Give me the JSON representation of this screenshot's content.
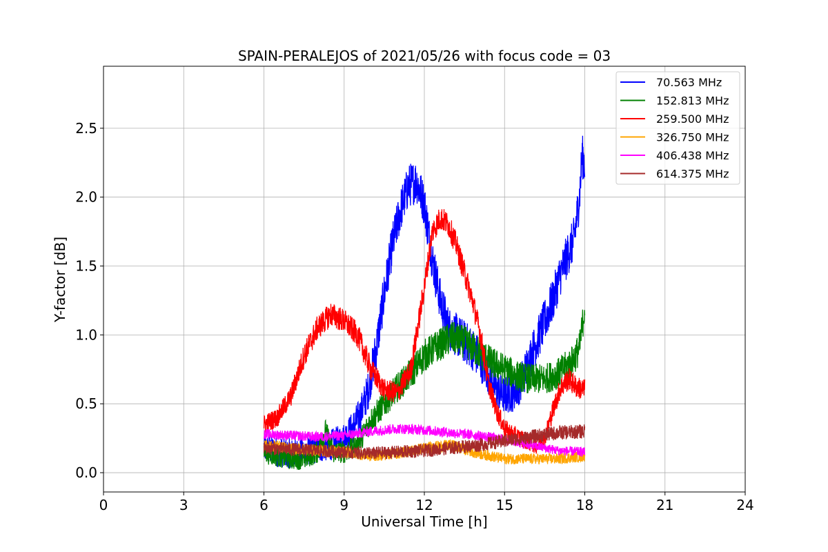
{
  "chart_data": {
    "type": "line",
    "title": "SPAIN-PERALEJOS of 2021/05/26 with focus code = 03",
    "xlabel": "Universal Time [h]",
    "ylabel": "Y-factor [dB]",
    "xlim": [
      0,
      24
    ],
    "ylim": [
      -0.14,
      2.95
    ],
    "xticks": [
      0,
      3,
      6,
      9,
      12,
      15,
      18,
      21,
      24
    ],
    "xtick_labels": [
      "0",
      "3",
      "6",
      "9",
      "12",
      "15",
      "18",
      "21",
      "24"
    ],
    "yticks": [
      0.0,
      0.5,
      1.0,
      1.5,
      2.0,
      2.5
    ],
    "ytick_labels": [
      "0.0",
      "0.5",
      "1.0",
      "1.5",
      "2.0",
      "2.5"
    ],
    "grid": true,
    "legend_position": "top-right",
    "series": [
      {
        "name": " 70.563 MHz",
        "color": "#0000ff",
        "noise": 0.16,
        "x": [
          6.0,
          6.5,
          7.0,
          7.5,
          8.0,
          8.5,
          9.0,
          9.3,
          9.6,
          9.9,
          10.2,
          10.5,
          10.8,
          11.1,
          11.4,
          11.7,
          12.0,
          12.3,
          12.6,
          12.9,
          13.2,
          13.5,
          13.8,
          14.1,
          14.4,
          14.7,
          15.0,
          15.3,
          15.6,
          15.9,
          16.2,
          16.5,
          16.8,
          17.1,
          17.4,
          17.6,
          17.8,
          17.9,
          18.0
        ],
        "y": [
          0.18,
          0.15,
          0.14,
          0.15,
          0.18,
          0.2,
          0.25,
          0.32,
          0.42,
          0.6,
          0.9,
          1.3,
          1.65,
          1.9,
          2.08,
          2.12,
          1.95,
          1.55,
          1.25,
          1.05,
          1.0,
          0.95,
          0.9,
          0.82,
          0.72,
          0.6,
          0.56,
          0.58,
          0.65,
          0.8,
          0.95,
          1.1,
          1.25,
          1.45,
          1.6,
          1.7,
          2.0,
          2.3,
          2.25
        ]
      },
      {
        "name": "152.813 MHz",
        "color": "#008000",
        "noise": 0.12,
        "x": [
          6.0,
          6.5,
          7.0,
          7.5,
          8.0,
          8.3,
          8.6,
          9.0,
          9.5,
          10.0,
          10.5,
          11.0,
          11.5,
          12.0,
          12.5,
          13.0,
          13.5,
          14.0,
          14.5,
          15.0,
          15.5,
          16.0,
          16.5,
          17.0,
          17.5,
          17.8,
          18.0
        ],
        "y": [
          0.15,
          0.12,
          0.1,
          0.1,
          0.15,
          0.3,
          0.15,
          0.15,
          0.2,
          0.38,
          0.5,
          0.62,
          0.72,
          0.85,
          0.92,
          0.98,
          0.95,
          0.88,
          0.8,
          0.75,
          0.7,
          0.68,
          0.68,
          0.72,
          0.8,
          0.9,
          1.2
        ]
      },
      {
        "name": "259.500 MHz",
        "color": "#ff0000",
        "noise": 0.09,
        "x": [
          6.0,
          6.5,
          7.0,
          7.5,
          8.0,
          8.5,
          9.0,
          9.5,
          10.0,
          10.5,
          11.0,
          11.5,
          12.0,
          12.3,
          12.6,
          12.9,
          13.2,
          13.5,
          13.8,
          14.1,
          14.4,
          14.7,
          15.0,
          15.3,
          15.6,
          15.9,
          16.2,
          16.5,
          16.8,
          17.1,
          17.4,
          17.7,
          18.0
        ],
        "y": [
          0.35,
          0.4,
          0.55,
          0.85,
          1.05,
          1.15,
          1.1,
          1.0,
          0.75,
          0.6,
          0.58,
          0.75,
          1.35,
          1.75,
          1.85,
          1.8,
          1.65,
          1.45,
          1.25,
          1.0,
          0.65,
          0.45,
          0.32,
          0.28,
          0.25,
          0.22,
          0.2,
          0.25,
          0.45,
          0.62,
          0.68,
          0.62,
          0.6
        ]
      },
      {
        "name": "326.750 MHz",
        "color": "#ffa500",
        "noise": 0.06,
        "x": [
          6.0,
          7.0,
          8.0,
          9.0,
          10.0,
          11.0,
          12.0,
          13.0,
          14.0,
          15.0,
          16.0,
          17.0,
          18.0
        ],
        "y": [
          0.2,
          0.18,
          0.16,
          0.15,
          0.12,
          0.14,
          0.18,
          0.2,
          0.14,
          0.1,
          0.1,
          0.1,
          0.12
        ]
      },
      {
        "name": "406.438 MHz",
        "color": "#ff00ff",
        "noise": 0.05,
        "x": [
          6.0,
          7.0,
          8.0,
          9.0,
          10.0,
          11.0,
          12.0,
          13.0,
          14.0,
          15.0,
          16.0,
          17.0,
          18.0
        ],
        "y": [
          0.28,
          0.27,
          0.26,
          0.27,
          0.3,
          0.32,
          0.31,
          0.29,
          0.27,
          0.24,
          0.2,
          0.16,
          0.15
        ]
      },
      {
        "name": "614.375 MHz",
        "color": "#a52a2a",
        "noise": 0.07,
        "x": [
          6.0,
          7.0,
          8.0,
          9.0,
          10.0,
          11.0,
          12.0,
          13.0,
          14.0,
          15.0,
          16.0,
          17.0,
          18.0
        ],
        "y": [
          0.18,
          0.17,
          0.16,
          0.15,
          0.14,
          0.15,
          0.16,
          0.18,
          0.2,
          0.23,
          0.26,
          0.29,
          0.3
        ]
      }
    ]
  }
}
